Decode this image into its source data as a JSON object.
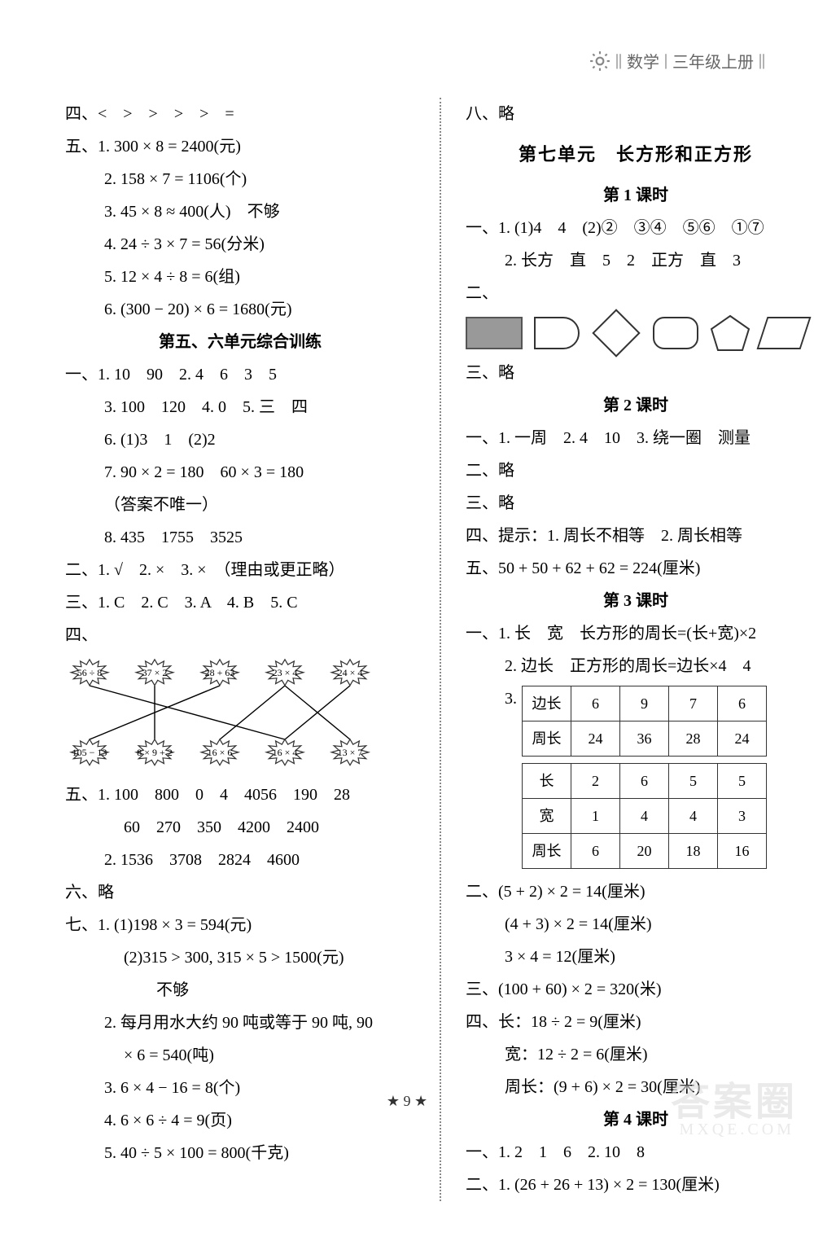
{
  "header": {
    "subject": "数学",
    "grade": "三年级上册"
  },
  "page_number": "9",
  "watermark": "答案圈",
  "watermark_sub": "MXQE.COM",
  "left": {
    "q4": "四、<　>　>　>　>　=",
    "q5": {
      "label": "五、",
      "items": [
        "1. 300 × 8 = 2400(元)",
        "2. 158 × 7 = 1106(个)",
        "3. 45 × 8 ≈ 400(人)　不够",
        "4. 24 ÷ 3 × 7 = 56(分米)",
        "5. 12 × 4 ÷ 8 = 6(组)",
        "6. (300 − 20) × 6 = 1680(元)"
      ]
    },
    "unit56_title": "第五、六单元综合训练",
    "q1": {
      "label": "一、",
      "lines": [
        "1. 10　90　2. 4　6　3　5",
        "3. 100　120　4. 0　5. 三　四",
        "6. (1)3　1　(2)2",
        "7. 90 × 2 = 180　60 × 3 = 180",
        "（答案不唯一）",
        "8. 435　1755　3525"
      ]
    },
    "q2": "二、1. √　2. ×　3. ×　（理由或更正略）",
    "q3": "三、1. C　2. C　3. A　4. B　5. C",
    "q4b_label": "四、",
    "match": {
      "top": [
        "56 ÷ 8",
        "37 × 2",
        "28 + 63",
        "23 × 4",
        "24 × 4"
      ],
      "bottom": [
        "105 − 13",
        "8 × 9 + 2",
        "16 × 6",
        "16 × 4",
        "13 × 7"
      ],
      "links": [
        [
          0,
          3
        ],
        [
          1,
          1
        ],
        [
          2,
          0
        ],
        [
          3,
          2
        ],
        [
          3,
          4
        ],
        [
          4,
          3
        ]
      ]
    },
    "q5b": {
      "label": "五、",
      "lines": [
        "1. 100　800　0　4　4056　190　28",
        "60　270　350　4200　2400",
        "2. 1536　3708　2824　4600"
      ]
    },
    "q6": "六、略",
    "q7": {
      "label": "七、",
      "lines": [
        "1. (1)198 × 3 = 594(元)",
        "(2)315 > 300, 315 × 5 > 1500(元)",
        "不够",
        "2. 每月用水大约 90 吨或等于 90 吨, 90",
        "× 6 = 540(吨)",
        "3. 6 × 4 − 16 = 8(个)",
        "4. 6 × 6 ÷ 4 = 9(页)",
        "5. 40 ÷ 5 × 100 = 800(千克)"
      ]
    }
  },
  "right": {
    "q8": "八、略",
    "unit7_title": "第七单元　长方形和正方形",
    "lesson1": "第 1 课时",
    "l1": {
      "lines": [
        "一、1. (1)4　4　(2)②　③④　⑤⑥　①⑦",
        "2. 长方　直　5　2　正方　直　3",
        "二、"
      ],
      "shapes_label": "",
      "san": "三、略"
    },
    "lesson2": "第 2 课时",
    "l2": {
      "lines": [
        "一、1. 一周　2. 4　10　3. 绕一圈　测量",
        "二、略",
        "三、略",
        "四、提示：1. 周长不相等　2. 周长相等",
        "五、50 + 50 + 62 + 62 = 224(厘米)"
      ]
    },
    "lesson3": "第 3 课时",
    "l3_q1": {
      "lines": [
        "一、1. 长　宽　长方形的周长=(长+宽)×2",
        "2. 边长　正方形的周长=边长×4　4"
      ]
    },
    "table1_label": "3.",
    "table1": {
      "rows": [
        [
          "边长",
          "6",
          "9",
          "7",
          "6"
        ],
        [
          "周长",
          "24",
          "36",
          "28",
          "24"
        ]
      ]
    },
    "table2": {
      "rows": [
        [
          "长",
          "2",
          "6",
          "5",
          "5"
        ],
        [
          "宽",
          "1",
          "4",
          "4",
          "3"
        ],
        [
          "周长",
          "6",
          "20",
          "18",
          "16"
        ]
      ]
    },
    "l3_rest": [
      "二、(5 + 2) × 2 = 14(厘米)",
      "(4 + 3) × 2 = 14(厘米)",
      "3 × 4 = 12(厘米)",
      "三、(100 + 60) × 2 = 320(米)",
      "四、长：18 ÷ 2 = 9(厘米)",
      "宽：12 ÷ 2 = 6(厘米)",
      "周长：(9 + 6) × 2 = 30(厘米)"
    ],
    "lesson4": "第 4 课时",
    "l4": [
      "一、1. 2　1　6　2. 10　8",
      "二、1. (26 + 26 + 13) × 2 = 130(厘米)"
    ]
  }
}
